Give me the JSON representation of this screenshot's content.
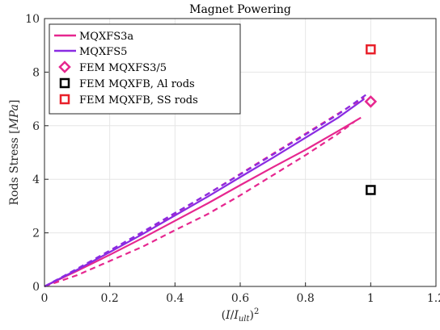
{
  "chart_data": {
    "type": "line",
    "title": "Magnet Powering",
    "xlabel": "(I/I_ult)^2",
    "ylabel": "Rods Stress [MPa]",
    "xlim": [
      0,
      1.2
    ],
    "ylim": [
      0,
      10
    ],
    "xticks": [
      0,
      0.2,
      0.4,
      0.6,
      0.8,
      1,
      1.2
    ],
    "yticks": [
      0,
      2,
      4,
      6,
      8,
      10
    ],
    "xtick_labels": [
      "0",
      "0.2",
      "0.4",
      "0.6",
      "0.8",
      "1",
      "1.2"
    ],
    "ytick_labels": [
      "0",
      "2",
      "4",
      "6",
      "8",
      "10"
    ],
    "grid": true,
    "legend_position": "top-left",
    "series": [
      {
        "name": "MQXFS3a",
        "color": "#e6278f",
        "style": "solid",
        "x": [
          0,
          0.1,
          0.2,
          0.3,
          0.4,
          0.5,
          0.6,
          0.7,
          0.8,
          0.9,
          0.97
        ],
        "y": [
          0,
          0.58,
          1.18,
          1.8,
          2.45,
          3.1,
          3.78,
          4.45,
          5.1,
          5.8,
          6.3
        ]
      },
      {
        "name": "",
        "color": "#e6278f",
        "style": "dashed",
        "x": [
          0,
          0.1,
          0.2,
          0.3,
          0.4,
          0.5,
          0.6,
          0.7,
          0.8,
          0.9,
          0.95
        ],
        "y": [
          0,
          0.42,
          0.95,
          1.48,
          2.1,
          2.7,
          3.4,
          4.15,
          4.9,
          5.7,
          6.15
        ]
      },
      {
        "name": "",
        "color": "#e6278f",
        "style": "dashed",
        "x": [
          0,
          0.1,
          0.2,
          0.3,
          0.4,
          0.5,
          0.6,
          0.7,
          0.8,
          0.9,
          0.98
        ],
        "y": [
          0,
          0.62,
          1.3,
          2.0,
          2.72,
          3.45,
          4.2,
          4.95,
          5.7,
          6.45,
          7.05
        ]
      },
      {
        "name": "MQXFS5",
        "color": "#8a2be2",
        "style": "solid",
        "x": [
          0,
          0.1,
          0.2,
          0.3,
          0.4,
          0.5,
          0.6,
          0.7,
          0.8,
          0.9,
          0.98
        ],
        "y": [
          0,
          0.62,
          1.28,
          1.95,
          2.65,
          3.35,
          4.08,
          4.8,
          5.55,
          6.3,
          7.0
        ]
      },
      {
        "name": "",
        "color": "#8a2be2",
        "style": "dashed",
        "x": [
          0,
          0.1,
          0.2,
          0.3,
          0.4,
          0.5,
          0.6,
          0.7,
          0.8,
          0.9,
          0.985
        ],
        "y": [
          0,
          0.66,
          1.34,
          2.03,
          2.74,
          3.45,
          4.18,
          4.92,
          5.67,
          6.42,
          7.15
        ]
      }
    ],
    "points": [
      {
        "name": "FEM MQXFS3/5",
        "marker": "diamond",
        "color": "#e6278f",
        "x": 1.0,
        "y": 6.9
      },
      {
        "name": "FEM MQXFB, Al rods",
        "marker": "square",
        "color": "#000000",
        "x": 1.0,
        "y": 3.6
      },
      {
        "name": "FEM MQXFB, SS rods",
        "marker": "square",
        "color": "#e8202a",
        "x": 1.0,
        "y": 8.85
      }
    ]
  }
}
